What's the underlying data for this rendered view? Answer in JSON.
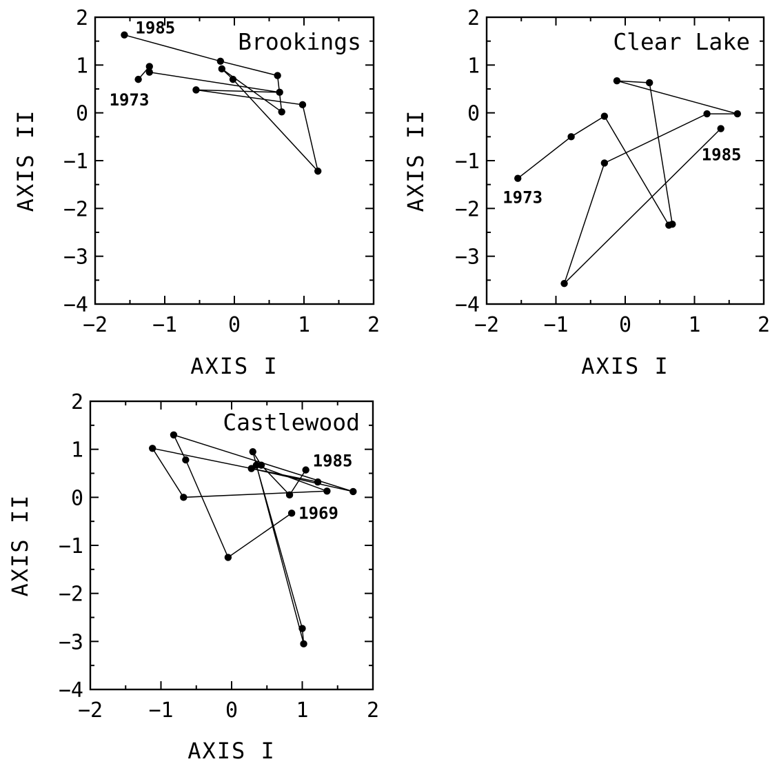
{
  "chart_data": [
    {
      "type": "line",
      "title": "Brookings",
      "xlabel": "AXIS I",
      "ylabel": "AXIS II",
      "xlim": [
        -2,
        2
      ],
      "ylim": [
        -4,
        2
      ],
      "xticks": [
        "-2",
        "-1",
        "0",
        "1",
        "2"
      ],
      "yticks": [
        "2",
        "1",
        "0",
        "-1",
        "-2",
        "-3",
        "-4"
      ],
      "grid": false,
      "points": [
        [
          -1.38,
          0.7
        ],
        [
          -1.22,
          0.97
        ],
        [
          -1.22,
          0.85
        ],
        [
          0.65,
          0.43
        ],
        [
          -0.55,
          0.48
        ],
        [
          0.98,
          0.17
        ],
        [
          1.2,
          -1.22
        ],
        [
          -0.02,
          0.7
        ],
        [
          -0.18,
          0.92
        ],
        [
          0.68,
          0.02
        ],
        [
          0.62,
          0.78
        ],
        [
          -0.2,
          1.08
        ],
        [
          -1.58,
          1.63
        ]
      ],
      "annotations": [
        {
          "text": "1985",
          "x": -1.58,
          "y": 1.63
        },
        {
          "text": "1973",
          "x": -1.38,
          "y": 0.7
        }
      ]
    },
    {
      "type": "line",
      "title": "Clear Lake",
      "xlabel": "AXIS I",
      "ylabel": "AXIS II",
      "xlim": [
        -2,
        2
      ],
      "ylim": [
        -4,
        2
      ],
      "xticks": [
        "-2",
        "-1",
        "0",
        "1",
        "2"
      ],
      "yticks": [
        "2",
        "1",
        "0",
        "-1",
        "-2",
        "-3",
        "-4"
      ],
      "grid": false,
      "points": [
        [
          -1.55,
          -1.37
        ],
        [
          -0.78,
          -0.5
        ],
        [
          -0.3,
          -0.07
        ],
        [
          0.63,
          -2.35
        ],
        [
          0.68,
          -2.33
        ],
        [
          0.35,
          0.63
        ],
        [
          -0.12,
          0.67
        ],
        [
          1.62,
          -0.02
        ],
        [
          1.18,
          -0.02
        ],
        [
          -0.3,
          -1.05
        ],
        [
          -0.88,
          -3.57
        ],
        [
          1.38,
          -0.33
        ]
      ],
      "annotations": [
        {
          "text": "1973",
          "x": -1.55,
          "y": -1.37
        },
        {
          "text": "1985",
          "x": 1.38,
          "y": -0.33
        }
      ]
    },
    {
      "type": "line",
      "title": "Castlewood",
      "xlabel": "AXIS I",
      "ylabel": "AXIS II",
      "xlim": [
        -2,
        2
      ],
      "ylim": [
        -4,
        2
      ],
      "xticks": [
        "-2",
        "-1",
        "0",
        "1",
        "2"
      ],
      "yticks": [
        "2",
        "1",
        "0",
        "-1",
        "-2",
        "-3",
        "-4"
      ],
      "grid": false,
      "points": [
        [
          0.85,
          -0.33
        ],
        [
          -0.05,
          -1.25
        ],
        [
          -0.65,
          0.78
        ],
        [
          -0.82,
          1.3
        ],
        [
          1.72,
          0.12
        ],
        [
          0.28,
          0.6
        ],
        [
          1.22,
          0.32
        ],
        [
          -1.12,
          1.02
        ],
        [
          -0.68,
          0.0
        ],
        [
          1.35,
          0.13
        ],
        [
          0.35,
          0.67
        ],
        [
          1.0,
          -2.73
        ],
        [
          1.02,
          -3.05
        ],
        [
          0.3,
          0.95
        ],
        [
          0.42,
          0.67
        ],
        [
          0.82,
          0.05
        ],
        [
          1.05,
          0.57
        ]
      ],
      "annotations": [
        {
          "text": "1969",
          "x": 0.85,
          "y": -0.33
        },
        {
          "text": "1985",
          "x": 1.05,
          "y": 0.57
        }
      ]
    }
  ]
}
